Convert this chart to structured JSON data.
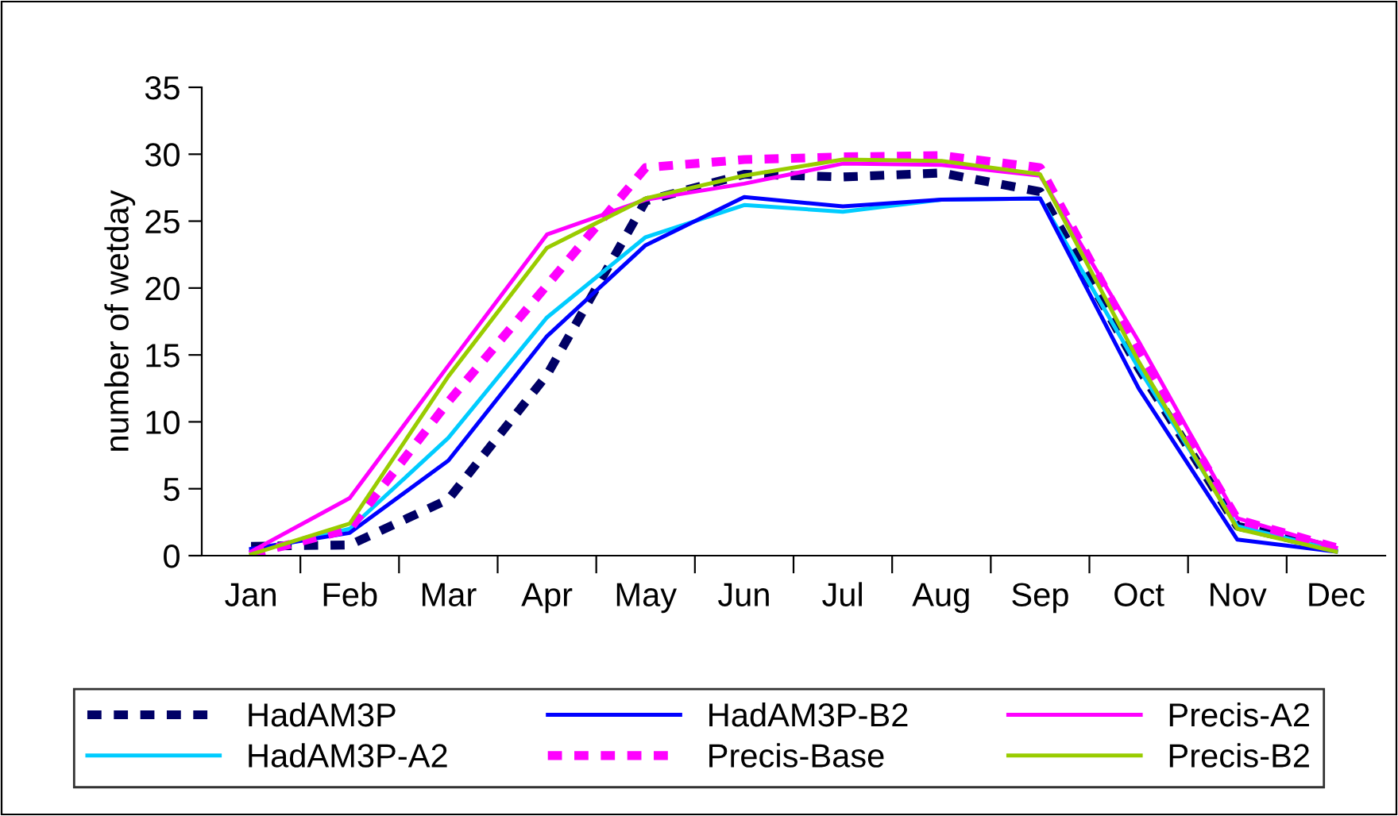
{
  "chart_data": {
    "type": "line",
    "ylabel": "number of wetday",
    "categories": [
      "Jan",
      "Feb",
      "Mar",
      "Apr",
      "May",
      "Jun",
      "Jul",
      "Aug",
      "Sep",
      "Oct",
      "Nov",
      "Dec"
    ],
    "ylim": [
      0,
      35
    ],
    "yticks": [
      0,
      5,
      10,
      15,
      20,
      25,
      30,
      35
    ],
    "grid": false,
    "legend": "bottom",
    "marker": "none",
    "series": [
      {
        "name": "HadAM3P",
        "color": "#000066",
        "line_style": "dashed",
        "values": [
          0.7,
          0.8,
          4.2,
          13.5,
          26.5,
          28.5,
          28.3,
          28.6,
          27.2,
          14,
          2.2,
          0.5
        ]
      },
      {
        "name": "HadAM3P-A2",
        "color": "#00ccff",
        "line_style": "solid",
        "values": [
          0.3,
          2.0,
          8.8,
          17.8,
          23.8,
          26.2,
          25.7,
          26.6,
          26.7,
          14,
          2.2,
          0.4
        ]
      },
      {
        "name": "HadAM3P-B2",
        "color": "#0000ff",
        "line_style": "solid",
        "values": [
          0.5,
          1.7,
          7.1,
          16.4,
          23.2,
          26.8,
          26.1,
          26.6,
          26.7,
          12.5,
          1.2,
          0.3
        ]
      },
      {
        "name": "Precis-Base",
        "color": "#ff00ff",
        "line_style": "dashed",
        "values": [
          0.1,
          2.0,
          11.5,
          20.2,
          29.0,
          29.6,
          29.8,
          29.9,
          29.0,
          15.3,
          2.7,
          0.6
        ]
      },
      {
        "name": "Precis-A2",
        "color": "#ff00ff",
        "line_style": "solid",
        "values": [
          0.3,
          4.3,
          14.2,
          24.0,
          26.6,
          27.8,
          29.3,
          29.2,
          28.4,
          16,
          2.8,
          0.6
        ]
      },
      {
        "name": "Precis-B2",
        "color": "#99cc00",
        "line_style": "solid",
        "values": [
          0.1,
          2.4,
          13.4,
          23.0,
          26.7,
          28.4,
          29.6,
          29.5,
          28.5,
          14.5,
          2.0,
          0.3
        ]
      }
    ]
  }
}
